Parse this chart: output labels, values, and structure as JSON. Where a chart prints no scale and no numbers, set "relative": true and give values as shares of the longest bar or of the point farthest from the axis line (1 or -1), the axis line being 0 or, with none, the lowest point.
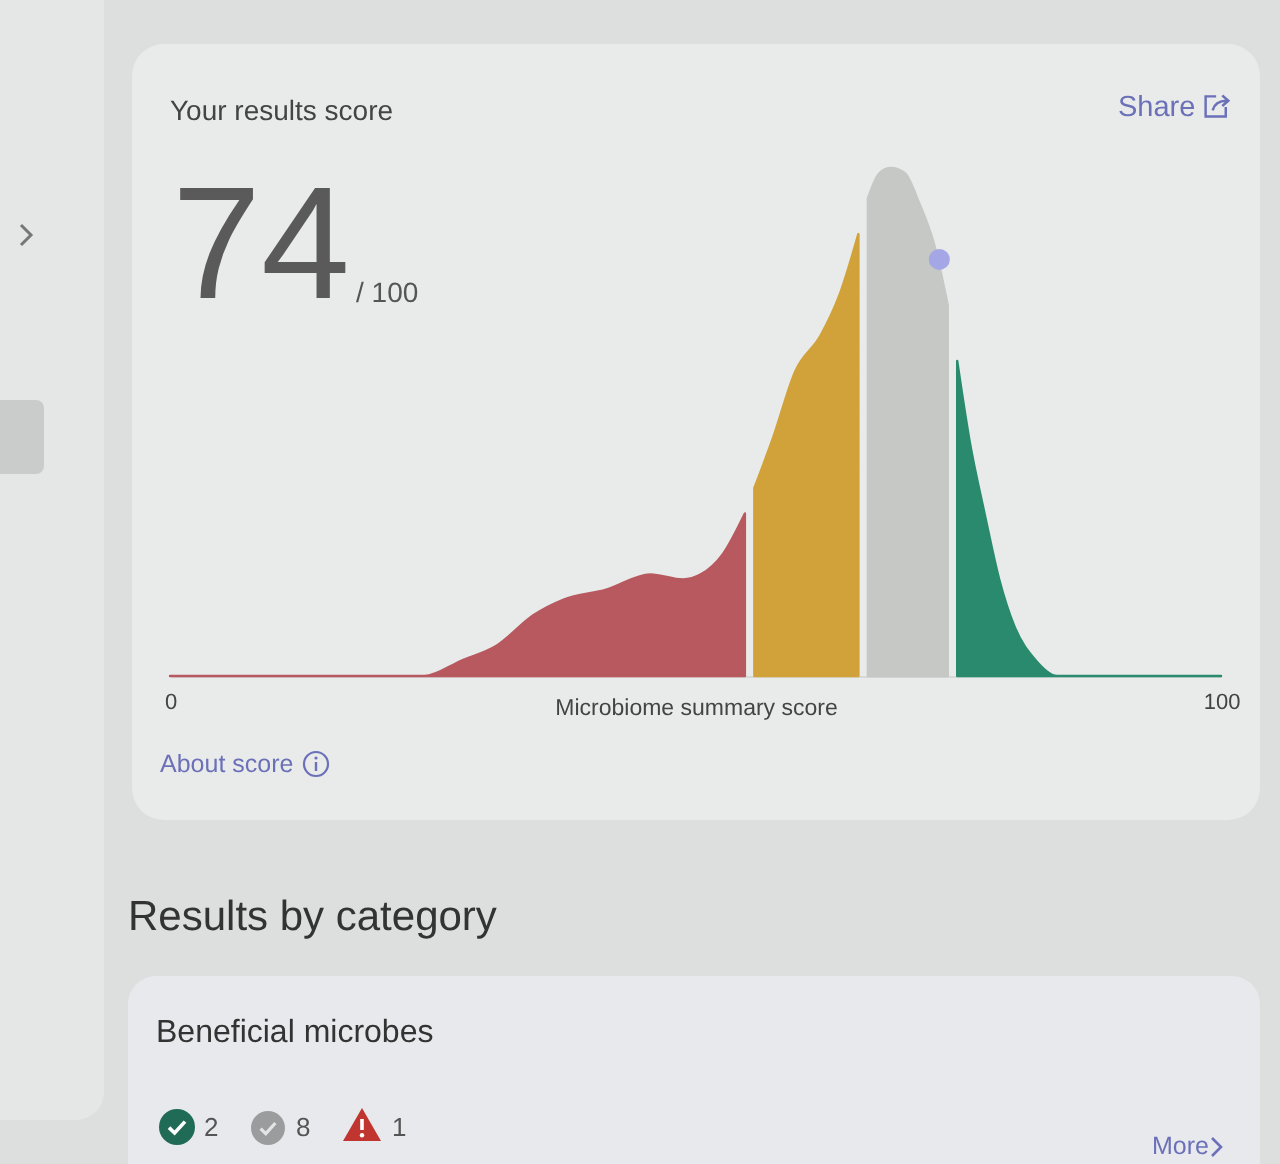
{
  "chart_data": {
    "type": "area",
    "title": "Your results score",
    "xlabel": "Microbiome summary score",
    "relative": true,
    "xlim": [
      0,
      100
    ],
    "xticks": [
      0,
      100
    ],
    "series": [
      {
        "type": "area",
        "color": "#b7595f",
        "x": [
          0,
          24.2,
          27.7,
          31.1,
          34.6,
          37.4,
          41.5,
          45.7,
          48.8,
          50.5,
          52.6,
          54.7
        ],
        "values": [
          0,
          0,
          0.03,
          0.06,
          0.12,
          0.15,
          0.17,
          0.2,
          0.19,
          0.2,
          0.24,
          0.32
        ]
      },
      {
        "type": "area",
        "color": "#d1a23a",
        "x": [
          55.6,
          57.4,
          59.5,
          61.9,
          63.7,
          65.5
        ],
        "values": [
          0.37,
          0.47,
          0.6,
          0.67,
          0.75,
          0.87
        ]
      },
      {
        "type": "area",
        "color": "#c5c8c5",
        "x": [
          66.4,
          67.5,
          68.6,
          69.9,
          71.3,
          72.7,
          74
        ],
        "values": [
          0.94,
          0.99,
          1,
          0.99,
          0.93,
          0.85,
          0.73
        ]
      },
      {
        "type": "area",
        "color": "#2a8a6e",
        "x": [
          74.9,
          76.1,
          77.5,
          78.9,
          80.3,
          82.4,
          84.4,
          100
        ],
        "values": [
          0.62,
          0.46,
          0.32,
          0.19,
          0.1,
          0.03,
          0,
          0
        ]
      },
      {
        "type": "scatter",
        "marker": "circle",
        "color": "#a4a6e6",
        "x": [
          73.2
        ],
        "values": [
          0.82
        ]
      }
    ],
    "annotations": [
      "74",
      "/ 100",
      "Share",
      "About score",
      "Results by category",
      "Beneficial microbes",
      "2",
      "8",
      "1",
      "More"
    ]
  }
}
